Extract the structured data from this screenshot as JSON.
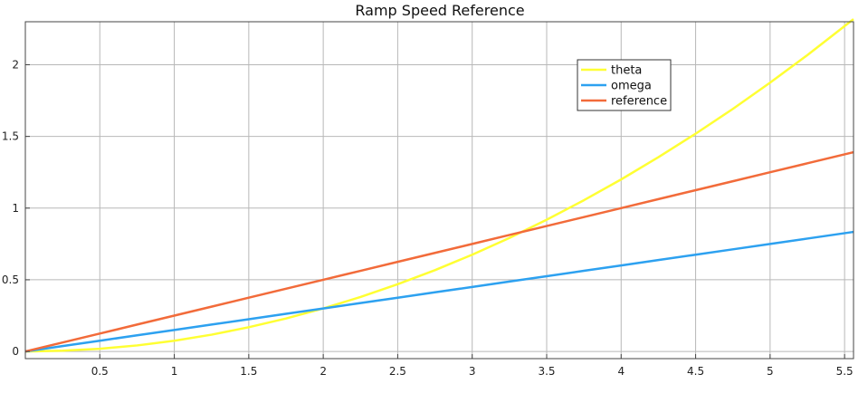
{
  "chart_data": {
    "type": "line",
    "title": "Ramp Speed Reference",
    "xlim": [
      0,
      5.56
    ],
    "ylim": [
      -0.05,
      2.3
    ],
    "grid": true,
    "legend_placement": "top-right",
    "xticks": [
      {
        "value": 0.5,
        "label": "0.5"
      },
      {
        "value": 1,
        "label": "1"
      },
      {
        "value": 1.5,
        "label": "1.5"
      },
      {
        "value": 2,
        "label": "2"
      },
      {
        "value": 2.5,
        "label": "2.5"
      },
      {
        "value": 3,
        "label": "3"
      },
      {
        "value": 3.5,
        "label": "3.5"
      },
      {
        "value": 4,
        "label": "4"
      },
      {
        "value": 4.5,
        "label": "4.5"
      },
      {
        "value": 5,
        "label": "5"
      },
      {
        "value": 5.5,
        "label": "5.5"
      }
    ],
    "yticks": [
      {
        "value": 0,
        "label": "0"
      },
      {
        "value": 0.5,
        "label": "0.5"
      },
      {
        "value": 1,
        "label": "1"
      },
      {
        "value": 1.5,
        "label": "1.5"
      },
      {
        "value": 2,
        "label": "2"
      }
    ],
    "x": [
      0,
      0.25,
      0.5,
      0.75,
      1,
      1.25,
      1.5,
      1.75,
      2,
      2.25,
      2.5,
      2.75,
      3,
      3.25,
      3.5,
      3.75,
      4,
      4.25,
      4.5,
      4.75,
      5,
      5.25,
      5.56
    ],
    "series": [
      {
        "name": "theta",
        "color": "#ffff33",
        "values": [
          0,
          0.005,
          0.019,
          0.042,
          0.075,
          0.117,
          0.169,
          0.23,
          0.3,
          0.38,
          0.469,
          0.567,
          0.675,
          0.792,
          0.919,
          1.055,
          1.2,
          1.355,
          1.519,
          1.692,
          1.875,
          2.067,
          2.318
        ]
      },
      {
        "name": "omega",
        "color": "#2da1f0",
        "values": [
          0,
          0.0375,
          0.075,
          0.1125,
          0.15,
          0.1875,
          0.225,
          0.2625,
          0.3,
          0.3375,
          0.375,
          0.4125,
          0.45,
          0.4875,
          0.525,
          0.5625,
          0.6,
          0.6375,
          0.675,
          0.7125,
          0.75,
          0.7875,
          0.834
        ]
      },
      {
        "name": "reference",
        "color": "#f26b3a",
        "values": [
          0,
          0.0625,
          0.125,
          0.1875,
          0.25,
          0.3125,
          0.375,
          0.4375,
          0.5,
          0.5625,
          0.625,
          0.6875,
          0.75,
          0.8125,
          0.875,
          0.9375,
          1.0,
          1.0625,
          1.125,
          1.1875,
          1.25,
          1.3125,
          1.39
        ]
      }
    ]
  }
}
